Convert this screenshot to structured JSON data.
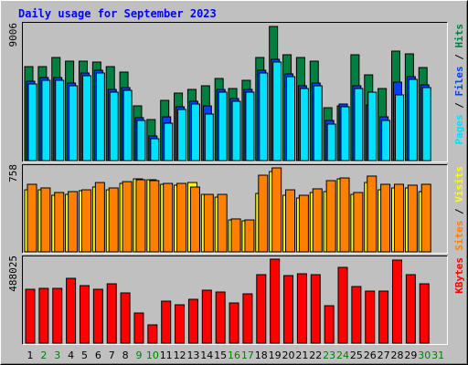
{
  "title": "Daily usage for September 2023",
  "legend_separator": " / ",
  "chart_data": [
    {
      "type": "bar",
      "ylim": [
        0,
        9006
      ],
      "yticks": [
        9006
      ],
      "series": [
        {
          "name": "Hits",
          "color": "#008040",
          "values": [
            6310,
            6310,
            6923,
            6678,
            6678,
            6617,
            6310,
            5943,
            3676,
            2757,
            4044,
            4534,
            4779,
            5024,
            5514,
            4840,
            5391,
            6923,
            9006,
            7107,
            6923,
            6678,
            3553,
            3676,
            7107,
            5759,
            4840,
            7352,
            7168,
            6249,
            null
          ]
        },
        {
          "name": "Files",
          "color": "#0040ff",
          "values": [
            5330,
            5575,
            5575,
            5208,
            5882,
            6066,
            4779,
            4902,
            2880,
            1654,
            2941,
            3615,
            3983,
            3676,
            4779,
            4167,
            4779,
            6066,
            6801,
            5821,
            5024,
            5208,
            2696,
            3799,
            5024,
            3737,
            2941,
            5269,
            5637,
            5086,
            null
          ]
        },
        {
          "name": "Pages",
          "color": "#00e0ff",
          "values": [
            5146,
            5391,
            5391,
            5024,
            5698,
            5882,
            4595,
            4718,
            2696,
            1470,
            2512,
            3431,
            3799,
            3125,
            4595,
            3983,
            4595,
            5882,
            6617,
            5637,
            4840,
            5024,
            2451,
            3615,
            4840,
            4595,
            2696,
            4411,
            5453,
            4902,
            null
          ]
        }
      ]
    },
    {
      "type": "bar",
      "ylim": [
        0,
        758
      ],
      "yticks": [
        758
      ],
      "series": [
        {
          "name": "Visits",
          "color": "#ffff00",
          "values": [
            560,
            560,
            511,
            519,
            552,
            585,
            560,
            618,
            659,
            651,
            610,
            602,
            626,
            519,
            494,
            288,
            280,
            527,
            725,
            511,
            486,
            536,
            544,
            659,
            519,
            626,
            560,
            577,
            577,
            544,
            null
          ]
        },
        {
          "name": "Sites",
          "color": "#ff8000",
          "values": [
            610,
            577,
            536,
            544,
            560,
            626,
            577,
            634,
            651,
            643,
            618,
            618,
            585,
            519,
            519,
            297,
            288,
            692,
            758,
            560,
            511,
            569,
            643,
            667,
            536,
            684,
            610,
            610,
            602,
            610,
            null
          ]
        }
      ]
    },
    {
      "type": "bar",
      "ylim": [
        0,
        488025
      ],
      "yticks": [
        488025
      ],
      "series": [
        {
          "name": "KBytes",
          "color": "#ff0000",
          "values": [
            312971,
            318276,
            318276,
            376627,
            334190,
            312971,
            344799,
            291753,
            175052,
            106092,
            244012,
            222793,
            254621,
            307667,
            297058,
            233402,
            286448,
            397845,
            488025,
            392540,
            403150,
            397845,
            217489,
            440282,
            328885,
            302362,
            302362,
            482720,
            397845,
            344799,
            null
          ]
        }
      ],
      "categories": [
        "1",
        "2",
        "3",
        "4",
        "5",
        "6",
        "7",
        "8",
        "9",
        "10",
        "11",
        "12",
        "13",
        "14",
        "15",
        "16",
        "17",
        "18",
        "19",
        "20",
        "21",
        "22",
        "23",
        "24",
        "25",
        "26",
        "27",
        "28",
        "29",
        "30",
        "31"
      ],
      "category_colors": [
        "#000000",
        "#008000",
        "#008000",
        "#000000",
        "#000000",
        "#000000",
        "#000000",
        "#000000",
        "#008000",
        "#008000",
        "#000000",
        "#000000",
        "#000000",
        "#000000",
        "#000000",
        "#008000",
        "#008000",
        "#000000",
        "#000000",
        "#000000",
        "#000000",
        "#000000",
        "#008000",
        "#008000",
        "#000000",
        "#000000",
        "#000000",
        "#000000",
        "#000000",
        "#008000",
        "#008000"
      ]
    }
  ]
}
